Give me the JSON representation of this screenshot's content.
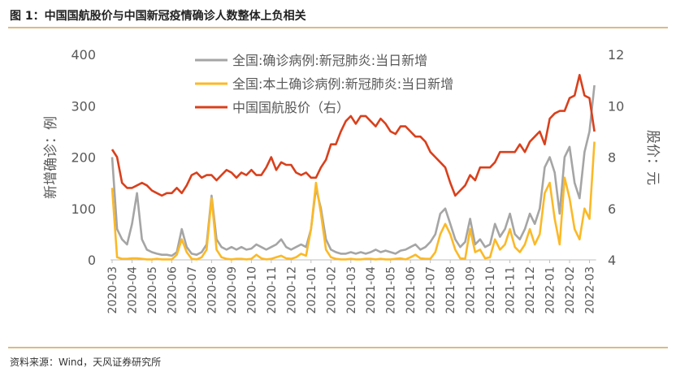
{
  "chart_data": {
    "type": "line",
    "title": "图 1：中国国航股价与中国新冠疫情确诊人数整体上负相关",
    "source": "资料来源：Wind，天风证券研究所",
    "ylabel": "新增确诊：例",
    "y2label": "股价：元",
    "categories": [
      "2020-03",
      null,
      null,
      null,
      "2020-04",
      null,
      null,
      null,
      "2020-05",
      null,
      null,
      null,
      "2020-06",
      null,
      null,
      null,
      "2020-07",
      null,
      null,
      null,
      "2020-08",
      null,
      null,
      null,
      "2020-09",
      null,
      null,
      null,
      "2020-10",
      null,
      null,
      null,
      "2020-11",
      null,
      null,
      null,
      "2020-12",
      null,
      null,
      null,
      "2021-01",
      null,
      null,
      null,
      "2021-02",
      null,
      null,
      null,
      "2021-03",
      null,
      null,
      null,
      "2021-04",
      null,
      null,
      null,
      "2021-05",
      null,
      null,
      null,
      "2021-06",
      null,
      null,
      null,
      "2021-07",
      null,
      null,
      null,
      "2021-08",
      null,
      null,
      null,
      "2021-09",
      null,
      null,
      null,
      "2021-10",
      null,
      null,
      null,
      "2021-11",
      null,
      null,
      null,
      "2021-12",
      null,
      null,
      null,
      "2022-01",
      null,
      null,
      null,
      "2022-02",
      null,
      null,
      null,
      "2022-03",
      null
    ],
    "ylim": [
      0,
      400
    ],
    "yticks": [
      0,
      100,
      200,
      300,
      400
    ],
    "y2lim": [
      4,
      12
    ],
    "y2ticks": [
      4,
      6,
      8,
      10,
      12
    ],
    "series": [
      {
        "name": "全国:确诊病例:新冠肺炎:当日新增",
        "color": "#a5a5a5",
        "values": [
          200,
          60,
          40,
          30,
          70,
          130,
          40,
          20,
          15,
          12,
          10,
          10,
          8,
          15,
          60,
          25,
          12,
          10,
          15,
          30,
          125,
          40,
          25,
          20,
          25,
          20,
          25,
          20,
          22,
          30,
          25,
          20,
          25,
          30,
          40,
          25,
          20,
          25,
          30,
          25,
          60,
          140,
          100,
          40,
          20,
          15,
          12,
          12,
          15,
          12,
          15,
          12,
          15,
          20,
          15,
          18,
          15,
          12,
          18,
          20,
          25,
          30,
          20,
          25,
          35,
          50,
          90,
          100,
          70,
          40,
          25,
          35,
          80,
          30,
          40,
          25,
          30,
          70,
          45,
          60,
          90,
          50,
          40,
          60,
          90,
          70,
          100,
          180,
          200,
          170,
          90,
          200,
          220,
          150,
          120,
          210,
          250,
          340
        ]
      },
      {
        "name": "全国:本土确诊病例:新冠肺炎:当日新增",
        "color": "#fbb927",
        "values": [
          140,
          5,
          2,
          2,
          3,
          3,
          2,
          1,
          1,
          2,
          1,
          1,
          1,
          10,
          40,
          15,
          2,
          1,
          5,
          20,
          120,
          20,
          5,
          2,
          1,
          2,
          2,
          1,
          2,
          10,
          3,
          1,
          2,
          5,
          8,
          3,
          2,
          5,
          12,
          8,
          60,
          150,
          90,
          20,
          5,
          2,
          1,
          1,
          2,
          1,
          1,
          2,
          2,
          1,
          2,
          1,
          1,
          2,
          3,
          1,
          5,
          10,
          3,
          2,
          2,
          15,
          50,
          70,
          50,
          20,
          3,
          2,
          60,
          15,
          20,
          3,
          5,
          40,
          20,
          30,
          60,
          25,
          15,
          30,
          60,
          30,
          50,
          130,
          150,
          80,
          30,
          160,
          120,
          60,
          40,
          100,
          80,
          230
        ]
      },
      {
        "name": "中国国航股价（右）",
        "color": "#d9401c",
        "axis": "y2",
        "values": [
          8.3,
          8.0,
          7.0,
          6.8,
          6.8,
          6.9,
          7.0,
          6.9,
          6.7,
          6.6,
          6.5,
          6.6,
          6.6,
          6.8,
          6.6,
          6.9,
          7.3,
          7.4,
          7.2,
          7.3,
          7.3,
          7.1,
          7.3,
          7.5,
          7.4,
          7.2,
          7.4,
          7.3,
          7.5,
          7.3,
          7.3,
          7.6,
          8.0,
          7.5,
          7.8,
          7.7,
          7.7,
          7.4,
          7.3,
          7.4,
          7.2,
          7.2,
          7.6,
          7.9,
          8.5,
          8.5,
          9.0,
          9.4,
          9.6,
          9.3,
          9.6,
          9.6,
          9.4,
          9.2,
          9.5,
          9.3,
          9.0,
          8.9,
          9.2,
          9.2,
          9.0,
          8.8,
          8.8,
          8.6,
          8.2,
          8.0,
          7.8,
          7.6,
          7.0,
          6.5,
          6.7,
          6.9,
          7.3,
          7.1,
          7.6,
          7.6,
          7.6,
          7.8,
          8.2,
          8.2,
          8.2,
          8.2,
          8.5,
          8.2,
          8.6,
          8.8,
          9.0,
          8.5,
          9.5,
          9.7,
          9.8,
          9.8,
          10.3,
          10.4,
          11.2,
          10.4,
          10.3,
          9.0
        ]
      }
    ]
  }
}
